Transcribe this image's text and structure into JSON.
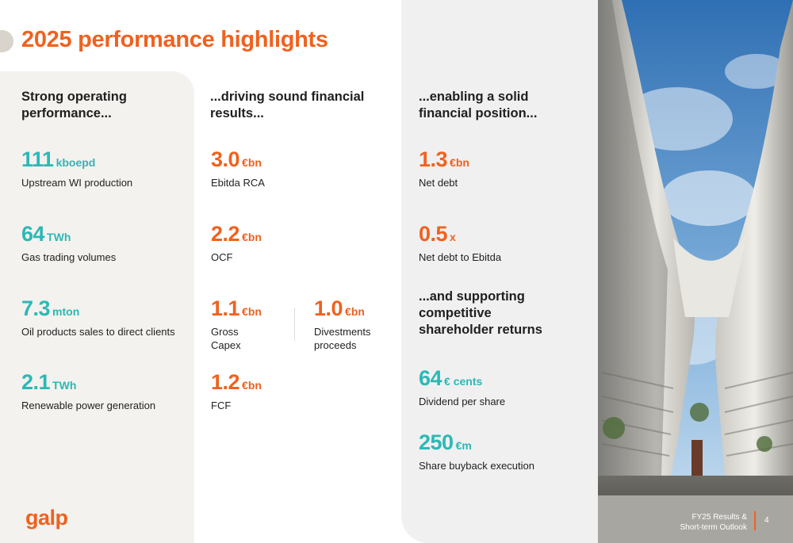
{
  "title": "2025 performance highlights",
  "columns": [
    {
      "heading_line1": "Strong operating",
      "heading_line2": "performance...",
      "metrics": [
        {
          "value": "111",
          "unit": "kboepd",
          "label": "Upstream WI production"
        },
        {
          "value": "64",
          "unit": "TWh",
          "label": "Gas trading volumes"
        },
        {
          "value": "7.3",
          "unit": "mton",
          "label": "Oil products sales to direct clients"
        },
        {
          "value": "2.1",
          "unit": "TWh",
          "label": "Renewable power generation"
        }
      ]
    },
    {
      "heading_line1": "...driving sound financial",
      "heading_line2": "results...",
      "metrics": [
        {
          "value": "3.0",
          "unit": "€bn",
          "label": "Ebitda RCA"
        },
        {
          "value": "2.2",
          "unit": "€bn",
          "label": "OCF"
        },
        {
          "value": "1.1",
          "unit": "€bn",
          "label_line1": "Gross",
          "label_line2": "Capex"
        },
        {
          "value": "1.0",
          "unit": "€bn",
          "label_line1": "Divestments",
          "label_line2": "proceeds"
        },
        {
          "value": "1.2",
          "unit": "€bn",
          "label": "FCF"
        }
      ]
    },
    {
      "heading_line1": "...enabling a solid",
      "heading_line2": "financial position...",
      "metrics": [
        {
          "value": "1.3",
          "unit": "€bn",
          "label": "Net debt"
        },
        {
          "value": "0.5",
          "unit": "x",
          "label": "Net debt to Ebitda"
        }
      ],
      "subheading_line1": "...and supporting",
      "subheading_line2": "competitive",
      "subheading_line3": "shareholder returns",
      "metrics2": [
        {
          "value": "64",
          "unit": "€ cents",
          "label": "Dividend per share"
        },
        {
          "value": "250",
          "unit": "€m",
          "label": "Share buyback execution"
        }
      ]
    }
  ],
  "logo_text": "galp",
  "footer": {
    "line1": "FY25 Results &",
    "line2": "Short-term Outlook",
    "page": "4"
  },
  "colors": {
    "accent_orange": "#f0611f",
    "accent_teal": "#2cb8b6"
  },
  "photo": {
    "description_icon": "building-photo"
  }
}
